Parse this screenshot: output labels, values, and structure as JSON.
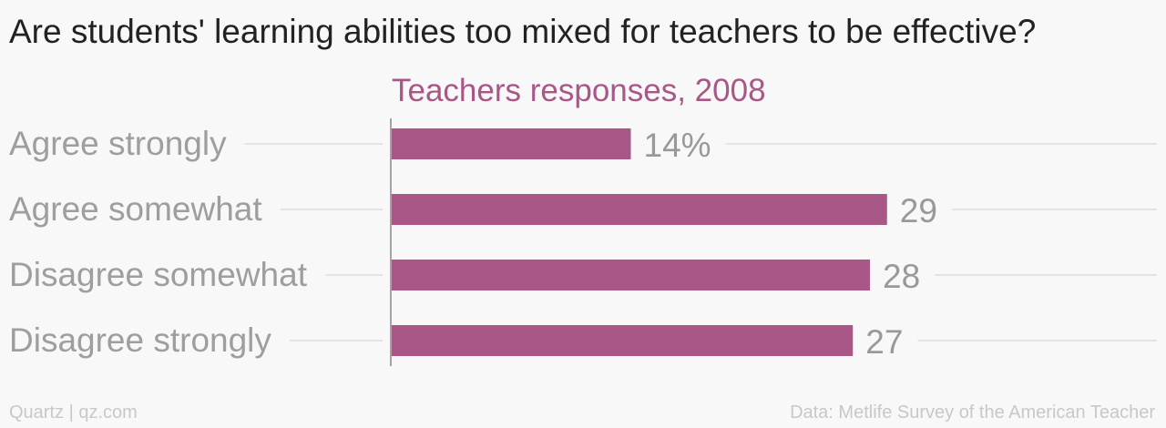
{
  "chart_data": {
    "type": "bar",
    "orientation": "horizontal",
    "title": "Are students' learning abilities too mixed for teachers to be effective?",
    "subtitle": "Teachers responses, 2008",
    "categories": [
      "Agree strongly",
      "Agree somewhat",
      "Disagree somewhat",
      "Disagree strongly"
    ],
    "values": [
      14,
      29,
      28,
      27
    ],
    "data_labels": [
      "14%",
      "29",
      "28",
      "27"
    ],
    "xlim": [
      0,
      29
    ],
    "grid": false,
    "legend": "none",
    "colors": {
      "bar": "#a85786",
      "subtitle": "#a85786",
      "category_label": "#9e9e9e",
      "value_label": "#999999",
      "guide_line": "#e4e4e4",
      "axis": "#888888"
    }
  },
  "footer": {
    "source_left": "Quartz | qz.com",
    "source_right": "Data: Metlife Survey of the American Teacher"
  }
}
